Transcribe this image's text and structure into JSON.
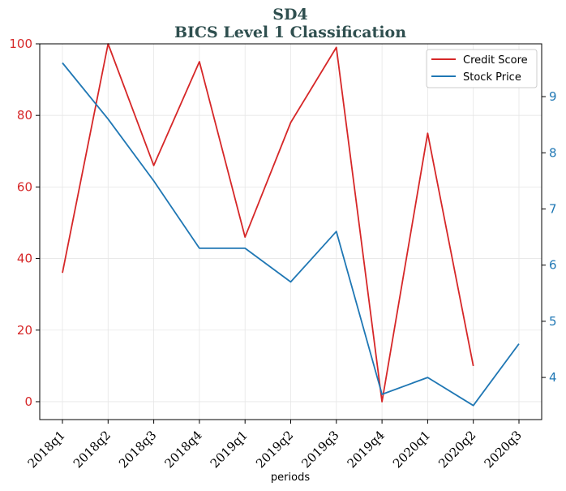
{
  "chart_data": {
    "type": "line",
    "title": "SD4",
    "subtitle": "BICS Level 1 Classification",
    "xlabel": "periods",
    "ylabel": "",
    "y2label": "",
    "categories": [
      "2018q1",
      "2018q2",
      "2018q3",
      "2018q4",
      "2019q1",
      "2019q2",
      "2019q3",
      "2019q4",
      "2020q1",
      "2020q2",
      "2020q3"
    ],
    "ylim": [
      -5,
      100
    ],
    "yticks": [
      0,
      20,
      40,
      60,
      80,
      100
    ],
    "y2lim": [
      3.25,
      9.94
    ],
    "y2ticks": [
      4,
      5,
      6,
      7,
      8,
      9
    ],
    "grid": true,
    "legend_position": "top-right",
    "series": [
      {
        "name": "Credit Score",
        "axis": "left",
        "color": "#d62728",
        "values": [
          36,
          100,
          66,
          95,
          46,
          78,
          99,
          0,
          75,
          10,
          null
        ]
      },
      {
        "name": "Stock Price",
        "axis": "right",
        "color": "#1f77b4",
        "values": [
          9.6,
          8.6,
          7.5,
          6.3,
          6.3,
          5.7,
          6.6,
          3.7,
          4.0,
          3.5,
          4.6
        ]
      }
    ]
  }
}
